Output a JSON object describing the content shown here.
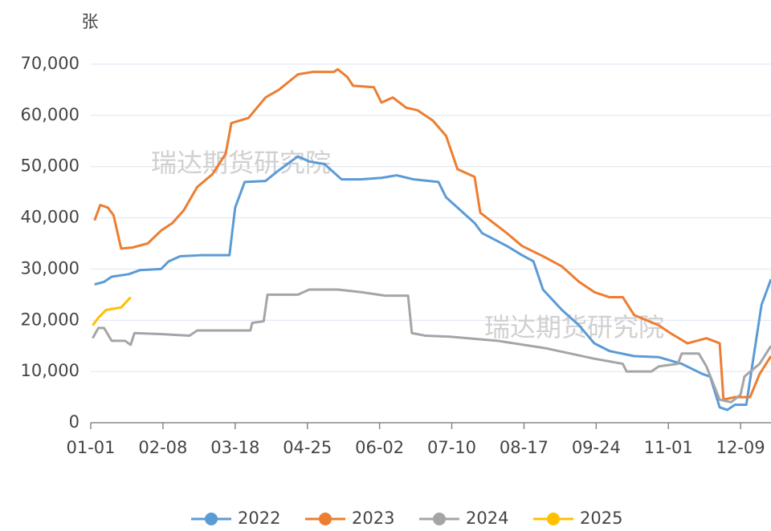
{
  "chart_data": {
    "type": "line",
    "y_unit": "张",
    "annotations": [
      "瑞达期货研究院",
      "瑞达期货研究院"
    ],
    "xlim": [
      0,
      358
    ],
    "xticks": [
      {
        "value": 0,
        "label": "01-01"
      },
      {
        "value": 38,
        "label": "02-08"
      },
      {
        "value": 76,
        "label": "03-18"
      },
      {
        "value": 114,
        "label": "04-25"
      },
      {
        "value": 152,
        "label": "06-02"
      },
      {
        "value": 190,
        "label": "07-10"
      },
      {
        "value": 228,
        "label": "08-17"
      },
      {
        "value": 266,
        "label": "09-24"
      },
      {
        "value": 304,
        "label": "11-01"
      },
      {
        "value": 342,
        "label": "12-09"
      }
    ],
    "ylim": [
      0,
      70000
    ],
    "yticks": [
      0,
      {
        "value": 10000,
        "label": "10,000"
      },
      {
        "value": 20000,
        "label": "20,000"
      },
      {
        "value": 30000,
        "label": "30,000"
      },
      {
        "value": 40000,
        "label": "40,000"
      },
      {
        "value": 50000,
        "label": "50,000"
      },
      {
        "value": 60000,
        "label": "60,000"
      },
      {
        "value": 70000,
        "label": "70,000"
      }
    ],
    "grid": true,
    "legend": "bottom",
    "series": [
      {
        "name": "2022",
        "color": "#5b9bd5",
        "x": [
          2,
          7,
          11,
          20,
          26,
          37,
          41,
          47,
          58,
          73,
          76,
          81,
          92,
          98,
          109,
          115,
          123,
          132,
          142,
          153,
          161,
          170,
          183,
          187,
          193,
          202,
          206,
          219,
          227,
          233,
          238,
          248,
          257,
          265,
          273,
          286,
          299,
          311,
          322,
          326,
          331,
          335,
          339,
          345,
          353,
          358
        ],
        "values": [
          27000,
          27500,
          28500,
          29000,
          29800,
          30000,
          31500,
          32500,
          32700,
          32700,
          42000,
          47000,
          47200,
          49000,
          52000,
          51000,
          50500,
          47500,
          47500,
          47800,
          48300,
          47500,
          47000,
          44000,
          42000,
          39000,
          37000,
          34500,
          32700,
          31500,
          26000,
          22000,
          19000,
          15500,
          14000,
          13000,
          12800,
          11500,
          9500,
          9000,
          3000,
          2500,
          3500,
          3500,
          23000,
          28000
        ]
      },
      {
        "name": "2023",
        "color": "#ed7d31",
        "x": [
          2,
          5,
          9,
          12,
          16,
          22,
          30,
          37,
          43,
          49,
          56,
          64,
          71,
          74,
          83,
          92,
          99,
          109,
          117,
          128,
          130,
          135,
          138,
          149,
          153,
          159,
          166,
          172,
          180,
          187,
          193,
          202,
          205,
          212,
          219,
          227,
          238,
          248,
          257,
          265,
          273,
          280,
          286,
          299,
          305,
          314,
          324,
          331,
          333,
          339,
          347,
          352,
          358
        ],
        "values": [
          39500,
          42500,
          42000,
          40500,
          34000,
          34200,
          35000,
          37500,
          39000,
          41500,
          46000,
          48500,
          52500,
          58500,
          59500,
          63500,
          65000,
          68000,
          68500,
          68500,
          69000,
          67500,
          65800,
          65500,
          62500,
          63500,
          61500,
          61000,
          59000,
          56000,
          49500,
          48000,
          41000,
          39000,
          37000,
          34500,
          32500,
          30500,
          27500,
          25500,
          24500,
          24500,
          21000,
          19000,
          17500,
          15500,
          16500,
          15500,
          4500,
          5000,
          5000,
          9500,
          13000
        ]
      },
      {
        "name": "2024",
        "color": "#a5a5a5",
        "x": [
          1,
          4,
          7,
          11,
          18,
          21,
          23,
          37,
          52,
          56,
          75,
          84,
          85,
          91,
          93,
          109,
          115,
          130,
          142,
          155,
          167,
          169,
          176,
          189,
          214,
          240,
          265,
          280,
          282,
          295,
          299,
          309,
          311,
          320,
          324,
          331,
          337,
          342,
          344,
          352,
          358
        ],
        "values": [
          16500,
          18500,
          18500,
          16000,
          16000,
          15200,
          17500,
          17300,
          17000,
          18000,
          18000,
          18000,
          19500,
          19800,
          25000,
          25000,
          26000,
          26000,
          25500,
          24800,
          24800,
          17500,
          17000,
          16800,
          16000,
          14500,
          12500,
          11500,
          10000,
          10000,
          11000,
          11500,
          13500,
          13500,
          11000,
          4500,
          4000,
          5500,
          9000,
          11500,
          15000
        ]
      },
      {
        "name": "2025",
        "color": "#ffc000",
        "x": [
          1,
          4,
          8,
          16,
          21
        ],
        "values": [
          19000,
          20500,
          22000,
          22500,
          24500
        ]
      }
    ]
  }
}
